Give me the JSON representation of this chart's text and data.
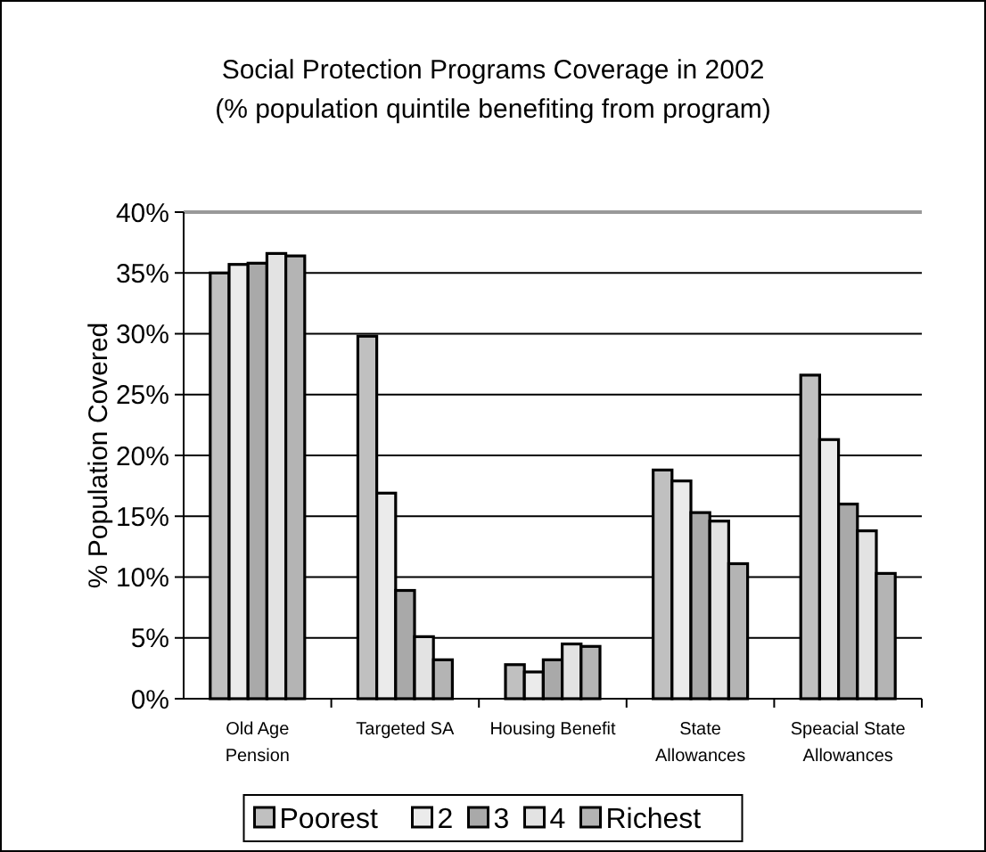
{
  "chart_data": {
    "type": "bar",
    "title": "Social Protection Programs Coverage in 2002",
    "subtitle": "(% population quintile benefiting from program)",
    "ylabel": "% Population Covered",
    "categories": [
      "Old Age\nPension",
      "Targeted SA",
      "Housing Benefit",
      "State\nAllowances",
      "Speacial State\nAllowances"
    ],
    "series": [
      {
        "name": "Poorest",
        "color": "#c0c0c0",
        "values": [
          35.0,
          29.8,
          2.8,
          18.8,
          26.6
        ]
      },
      {
        "name": "2",
        "color": "#ebebeb",
        "values": [
          35.7,
          16.9,
          2.2,
          17.9,
          21.3
        ]
      },
      {
        "name": "3",
        "color": "#a9a9a9",
        "values": [
          35.8,
          8.9,
          3.2,
          15.3,
          16.0
        ]
      },
      {
        "name": "4",
        "color": "#e3e3e3",
        "values": [
          36.6,
          5.1,
          4.5,
          14.6,
          13.8
        ]
      },
      {
        "name": "Richest",
        "color": "#b4b4b4",
        "values": [
          36.4,
          3.2,
          4.3,
          11.1,
          10.3
        ]
      }
    ],
    "ylim": [
      0,
      40
    ],
    "yticks": [
      {
        "value": 0,
        "label": "0%"
      },
      {
        "value": 5,
        "label": "5%"
      },
      {
        "value": 10,
        "label": "10%"
      },
      {
        "value": 15,
        "label": "15%"
      },
      {
        "value": 20,
        "label": "20%"
      },
      {
        "value": 25,
        "label": "25%"
      },
      {
        "value": 30,
        "label": "30%"
      },
      {
        "value": 35,
        "label": "35%"
      },
      {
        "value": 40,
        "label": "40%"
      }
    ],
    "grid": "y",
    "legend": "bottom"
  }
}
